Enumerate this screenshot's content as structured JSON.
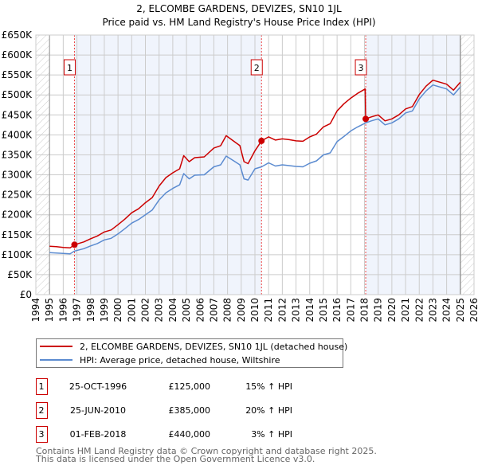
{
  "chart_data": {
    "type": "line",
    "title": "2, ELCOMBE GARDENS, DEVIZES, SN10 1JL",
    "subtitle": "Price paid vs. HM Land Registry's House Price Index (HPI)",
    "xlim": [
      1994,
      2026
    ],
    "ylim": [
      0,
      650000
    ],
    "x_ticks": [
      "1994",
      "1995",
      "1996",
      "1997",
      "1998",
      "1999",
      "2000",
      "2001",
      "2002",
      "2003",
      "2004",
      "2005",
      "2006",
      "2007",
      "2008",
      "2009",
      "2010",
      "2011",
      "2012",
      "2013",
      "2014",
      "2015",
      "2016",
      "2017",
      "2018",
      "2019",
      "2020",
      "2021",
      "2022",
      "2023",
      "2024",
      "2025",
      "2026"
    ],
    "y_ticks": [
      {
        "v": 0,
        "label": "£0"
      },
      {
        "v": 50000,
        "label": "£50K"
      },
      {
        "v": 100000,
        "label": "£100K"
      },
      {
        "v": 150000,
        "label": "£150K"
      },
      {
        "v": 200000,
        "label": "£200K"
      },
      {
        "v": 250000,
        "label": "£250K"
      },
      {
        "v": 300000,
        "label": "£300K"
      },
      {
        "v": 350000,
        "label": "£350K"
      },
      {
        "v": 400000,
        "label": "£400K"
      },
      {
        "v": 450000,
        "label": "£450K"
      },
      {
        "v": 500000,
        "label": "£500K"
      },
      {
        "v": 550000,
        "label": "£550K"
      },
      {
        "v": 600000,
        "label": "£600K"
      },
      {
        "v": 650000,
        "label": "£650K"
      }
    ],
    "grid": true,
    "data_range": [
      1995,
      2025
    ],
    "series": [
      {
        "name": "2, ELCOMBE GARDENS, DEVIZES, SN10 1JL (detached house)",
        "color": "#cc0000",
        "x": [
          1995,
          1995.5,
          1996,
          1996.5,
          1996.82,
          1997.5,
          1998,
          1998.5,
          1999,
          1999.5,
          2000,
          2000.5,
          2001,
          2001.5,
          2002,
          2002.5,
          2003,
          2003.5,
          2004,
          2004.5,
          2004.8,
          2005.2,
          2005.6,
          2006.3,
          2007,
          2007.5,
          2007.9,
          2008.5,
          2008.9,
          2009.2,
          2009.5,
          2010,
          2010.48,
          2011,
          2011.5,
          2012,
          2012.5,
          2013,
          2013.5,
          2014,
          2014.5,
          2015,
          2015.5,
          2016,
          2016.5,
          2017,
          2017.5,
          2018.05,
          2018.09,
          2018.5,
          2019,
          2019.5,
          2020,
          2020.5,
          2021,
          2021.5,
          2022,
          2022.5,
          2023,
          2023.5,
          2024,
          2024.5,
          2025
        ],
        "y": [
          121000,
          120000,
          118000,
          117000,
          125000,
          132000,
          140000,
          147000,
          157000,
          162000,
          175000,
          189000,
          205000,
          215000,
          230000,
          243000,
          272000,
          293000,
          305000,
          315000,
          348000,
          333000,
          343000,
          345000,
          367000,
          373000,
          398000,
          383000,
          373000,
          333000,
          328000,
          360000,
          385000,
          395000,
          387000,
          390000,
          388000,
          385000,
          384000,
          395000,
          402000,
          420000,
          428000,
          460000,
          478000,
          492000,
          504000,
          515000,
          440000,
          445000,
          450000,
          435000,
          440000,
          450000,
          465000,
          471000,
          501000,
          522000,
          537000,
          532000,
          527000,
          512000,
          532000
        ]
      },
      {
        "name": "HPI: Average price, detached house, Wiltshire",
        "color": "#5b8bd0",
        "x": [
          1995,
          1995.5,
          1996,
          1996.5,
          1996.82,
          1997.5,
          1998,
          1998.5,
          1999,
          1999.5,
          2000,
          2000.5,
          2001,
          2001.5,
          2002,
          2002.5,
          2003,
          2003.5,
          2004,
          2004.5,
          2004.8,
          2005.2,
          2005.6,
          2006.3,
          2007,
          2007.5,
          2007.9,
          2008.5,
          2008.9,
          2009.2,
          2009.5,
          2010,
          2010.48,
          2011,
          2011.5,
          2012,
          2012.5,
          2013,
          2013.5,
          2014,
          2014.5,
          2015,
          2015.5,
          2016,
          2016.5,
          2017,
          2017.5,
          2018.09,
          2018.5,
          2019,
          2019.5,
          2020,
          2020.5,
          2021,
          2021.5,
          2022,
          2022.5,
          2023,
          2023.5,
          2024,
          2024.5,
          2025
        ],
        "y": [
          105000,
          104000,
          103000,
          102000,
          109000,
          115000,
          122000,
          128000,
          137000,
          141000,
          152000,
          165000,
          179000,
          188000,
          200000,
          212000,
          237000,
          255000,
          266000,
          275000,
          303000,
          290000,
          299000,
          300000,
          320000,
          325000,
          347000,
          334000,
          325000,
          290000,
          287000,
          315000,
          320000,
          330000,
          322000,
          325000,
          323000,
          321000,
          320000,
          329000,
          335000,
          350000,
          355000,
          383000,
          396000,
          410000,
          420000,
          430000,
          435000,
          440000,
          425000,
          430000,
          440000,
          455000,
          460000,
          490000,
          510000,
          525000,
          520000,
          515000,
          500000,
          520000
        ]
      }
    ],
    "transactions": [
      {
        "id": "1",
        "x": 1996.82,
        "y": 125000
      },
      {
        "id": "2",
        "x": 2010.48,
        "y": 385000
      },
      {
        "id": "3",
        "x": 2018.09,
        "y": 440000
      }
    ]
  },
  "legend": {
    "items": [
      {
        "label": "2, ELCOMBE GARDENS, DEVIZES, SN10 1JL (detached house)",
        "color": "#cc0000"
      },
      {
        "label": "HPI: Average price, detached house, Wiltshire",
        "color": "#5b8bd0"
      }
    ]
  },
  "table": [
    {
      "id": "1",
      "date": "25-OCT-1996",
      "price": "£125,000",
      "hpi": "15% ↑ HPI"
    },
    {
      "id": "2",
      "date": "25-JUN-2010",
      "price": "£385,000",
      "hpi": "20% ↑ HPI"
    },
    {
      "id": "3",
      "date": "01-FEB-2018",
      "price": "£440,000",
      "hpi": "3% ↑ HPI"
    }
  ],
  "footer": {
    "line1": "Contains HM Land Registry data © Crown copyright and database right 2025.",
    "line2": "This data is licensed under the Open Government Licence v3.0."
  }
}
